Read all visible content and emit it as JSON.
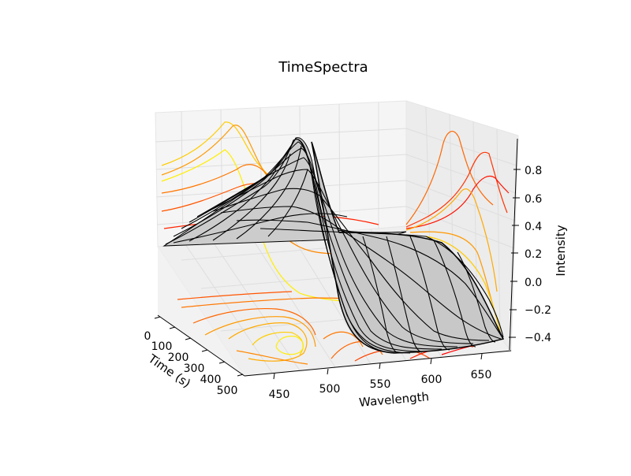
{
  "chart_data": {
    "type": "surface3d",
    "title": "TimeSpectra",
    "xlabel": "Wavelength",
    "ylabel": "Time (s)",
    "zlabel": "Intensity",
    "x_ticks": [
      "450",
      "500",
      "550",
      "600",
      "650"
    ],
    "y_ticks": [
      "0",
      "100",
      "200",
      "300",
      "400",
      "500"
    ],
    "z_ticks": [
      "−0.4",
      "−0.2",
      "0.0",
      "0.2",
      "0.4",
      "0.6",
      "0.8"
    ],
    "xlim": [
      430,
      680
    ],
    "ylim": [
      0,
      500
    ],
    "zlim": [
      -0.5,
      0.95
    ],
    "grid": true,
    "projection_contours": [
      "zdir",
      "xdir",
      "ydir"
    ],
    "colormap": "autumn",
    "surface_color": "#c8c8c8",
    "wire_color": "#000000"
  }
}
